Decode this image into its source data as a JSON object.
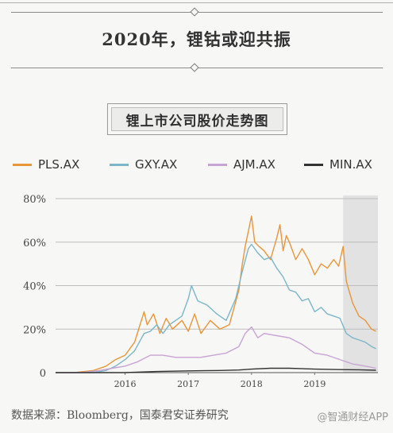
{
  "header": {
    "title": "2020年，锂钴或迎共振"
  },
  "chart_data": {
    "type": "line",
    "title": "锂上市公司股价走势图",
    "xlabel": "",
    "ylabel": "",
    "ylim": [
      0,
      80
    ],
    "xlim": [
      2014.9,
      2020.0
    ],
    "y_ticks": [
      0,
      20,
      40,
      60,
      80
    ],
    "y_tick_labels": [
      "0",
      "20%",
      "40%",
      "60%",
      "80%"
    ],
    "x_ticks": [
      2016.0,
      2017.0,
      2018.0,
      2019.0
    ],
    "x_tick_labels": [
      "2016",
      "2017",
      "2018",
      "2019"
    ],
    "grid": "horizontal",
    "legend_position": "top",
    "shaded_region": [
      2019.45,
      2020.0
    ],
    "series": [
      {
        "name": "PLS.AX",
        "color": "#e8963a",
        "x": [
          2014.9,
          2015.2,
          2015.5,
          2015.7,
          2015.85,
          2016.0,
          2016.15,
          2016.3,
          2016.35,
          2016.45,
          2016.55,
          2016.65,
          2016.75,
          2016.9,
          2017.0,
          2017.1,
          2017.2,
          2017.35,
          2017.5,
          2017.65,
          2017.8,
          2017.85,
          2017.9,
          2017.95,
          2018.0,
          2018.05,
          2018.12,
          2018.2,
          2018.3,
          2018.4,
          2018.45,
          2018.5,
          2018.55,
          2018.6,
          2018.7,
          2018.8,
          2018.9,
          2019.0,
          2019.1,
          2019.2,
          2019.3,
          2019.38,
          2019.45,
          2019.5,
          2019.6,
          2019.7,
          2019.8,
          2019.9,
          2019.97
        ],
        "y": [
          0,
          0,
          1,
          3,
          6,
          8,
          14,
          28,
          22,
          27,
          18,
          25,
          20,
          24,
          19,
          27,
          18,
          24,
          20,
          22,
          38,
          49,
          58,
          65,
          72,
          60,
          58,
          56,
          52,
          62,
          68,
          56,
          63,
          60,
          52,
          57,
          52,
          45,
          50,
          48,
          52,
          49,
          58,
          42,
          32,
          26,
          24,
          20,
          19
        ]
      },
      {
        "name": "GXY.AX",
        "color": "#7bb6c9",
        "x": [
          2014.9,
          2015.2,
          2015.5,
          2015.7,
          2015.85,
          2016.0,
          2016.15,
          2016.3,
          2016.4,
          2016.5,
          2016.6,
          2016.7,
          2016.8,
          2016.9,
          2017.0,
          2017.05,
          2017.15,
          2017.3,
          2017.45,
          2017.6,
          2017.75,
          2017.85,
          2017.95,
          2018.0,
          2018.1,
          2018.2,
          2018.3,
          2018.4,
          2018.5,
          2018.6,
          2018.7,
          2018.8,
          2018.9,
          2019.0,
          2019.1,
          2019.2,
          2019.3,
          2019.4,
          2019.5,
          2019.6,
          2019.7,
          2019.8,
          2019.9,
          2019.97
        ],
        "y": [
          0,
          0,
          0,
          1,
          3,
          6,
          10,
          18,
          19,
          22,
          18,
          22,
          24,
          26,
          34,
          40,
          33,
          31,
          27,
          24,
          34,
          46,
          57,
          59,
          55,
          52,
          53,
          48,
          44,
          38,
          37,
          33,
          34,
          28,
          30,
          27,
          26,
          25,
          18,
          16,
          15,
          14,
          12,
          11
        ]
      },
      {
        "name": "AJM.AX",
        "color": "#c9a3d4",
        "x": [
          2014.9,
          2015.3,
          2015.6,
          2015.8,
          2016.0,
          2016.2,
          2016.4,
          2016.6,
          2016.8,
          2017.0,
          2017.2,
          2017.4,
          2017.6,
          2017.8,
          2017.9,
          2018.0,
          2018.1,
          2018.2,
          2018.4,
          2018.6,
          2018.8,
          2019.0,
          2019.2,
          2019.4,
          2019.6,
          2019.8,
          2019.97
        ],
        "y": [
          0,
          0,
          1,
          2,
          3,
          5,
          8,
          8,
          7,
          7,
          7,
          8,
          9,
          12,
          18,
          21,
          16,
          18,
          17,
          16,
          13,
          9,
          8,
          6,
          4,
          3,
          2
        ]
      },
      {
        "name": "MIN.AX",
        "color": "#333333",
        "x": [
          2014.9,
          2015.5,
          2016.0,
          2016.5,
          2017.0,
          2017.5,
          2017.8,
          2018.0,
          2018.3,
          2018.6,
          2019.0,
          2019.4,
          2019.7,
          2019.97
        ],
        "y": [
          0,
          0,
          0,
          0.5,
          0.8,
          1,
          1.2,
          1.6,
          2,
          2,
          1.6,
          1.4,
          1.3,
          1.1
        ]
      }
    ]
  },
  "footer": {
    "source": "数据来源：Bloomberg，国泰君安证券研究",
    "watermark": "@智通财经APP"
  }
}
